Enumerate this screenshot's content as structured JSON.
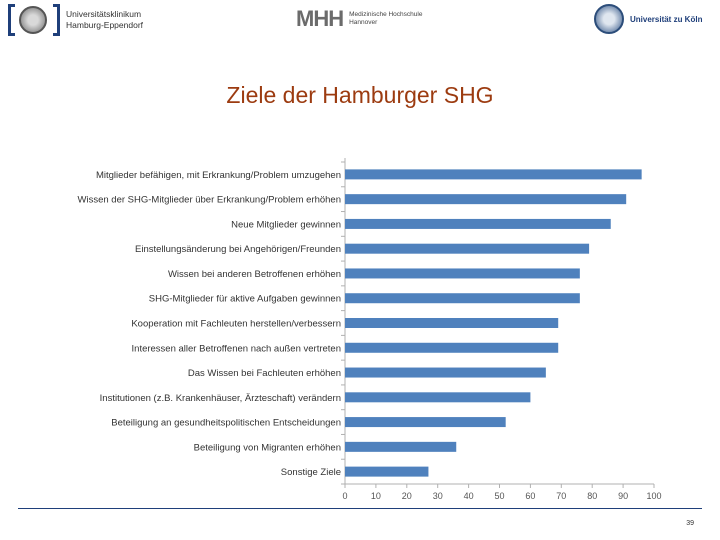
{
  "header": {
    "logo_left": "Universitätsklinikum Hamburg-Eppendorf",
    "logo_left_line1": "Universitätsklinikum",
    "logo_left_line2": "Hamburg-Eppendorf",
    "logo_center_mark": "MHH",
    "logo_center_line1": "Medizinische Hochschule",
    "logo_center_line2": "Hannover",
    "logo_right": "Universität zu Köln"
  },
  "slide": {
    "title": "Ziele der Hamburger SHG",
    "page_number": "39"
  },
  "colors": {
    "bar": "#4f81bd",
    "title": "#9c3b10",
    "accent_line": "#1f3f7a"
  },
  "chart_data": {
    "type": "bar",
    "orientation": "horizontal",
    "title": "",
    "xlabel": "",
    "ylabel": "",
    "xlim": [
      0,
      100
    ],
    "xticks": [
      0,
      10,
      20,
      30,
      40,
      50,
      60,
      70,
      80,
      90,
      100
    ],
    "grid": false,
    "categories": [
      "Mitglieder befähigen, mit Erkrankung/Problem umzugehen",
      "Wissen der SHG-Mitglieder über Erkrankung/Problem erhöhen",
      "Neue Mitglieder gewinnen",
      "Einstellungsänderung bei Angehörigen/Freunden",
      "Wissen bei anderen Betroffenen erhöhen",
      "SHG-Mitglieder für aktive Aufgaben gewinnen",
      "Kooperation mit Fachleuten herstellen/verbessern",
      "Interessen aller Betroffenen nach außen vertreten",
      "Das Wissen bei Fachleuten erhöhen",
      "Institutionen (z.B. Krankenhäuser, Ärzteschaft) verändern",
      "Beteiligung an gesundheitspolitischen Entscheidungen",
      "Beteiligung von Migranten erhöhen",
      "Sonstige Ziele"
    ],
    "values": [
      96,
      91,
      86,
      79,
      76,
      76,
      69,
      69,
      65,
      60,
      52,
      36,
      27
    ]
  }
}
